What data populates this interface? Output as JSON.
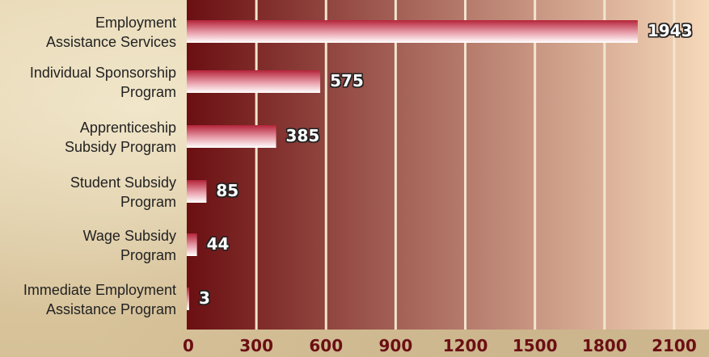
{
  "chart_data": {
    "type": "bar",
    "orientation": "horizontal",
    "categories": [
      [
        "Employment",
        "Assistance Services"
      ],
      [
        "Individual Sponsorship",
        "Program"
      ],
      [
        "Apprenticeship",
        "Subsidy Program"
      ],
      [
        "Student Subsidy",
        "Program"
      ],
      [
        "Wage Subsidy",
        "Program"
      ],
      [
        "Immediate Employment",
        "Assistance Program"
      ]
    ],
    "values": [
      1943,
      575,
      385,
      85,
      44,
      3
    ],
    "value_labels": [
      "1943",
      "575",
      "385",
      "85",
      "44",
      "3"
    ],
    "xlim": [
      0,
      2250
    ],
    "xticks": [
      "0",
      "300",
      "600",
      "900",
      "1200",
      "1500",
      "1800",
      "2100"
    ],
    "grid": "vertical",
    "colors": {
      "plot_bg_start": "#6b0f12",
      "plot_bg_end": "#f6d9ba",
      "bar_main": "#b5243a",
      "bar_light": "#ffffff",
      "tick_text": "#6b0f14",
      "category_text": "#222222"
    }
  }
}
